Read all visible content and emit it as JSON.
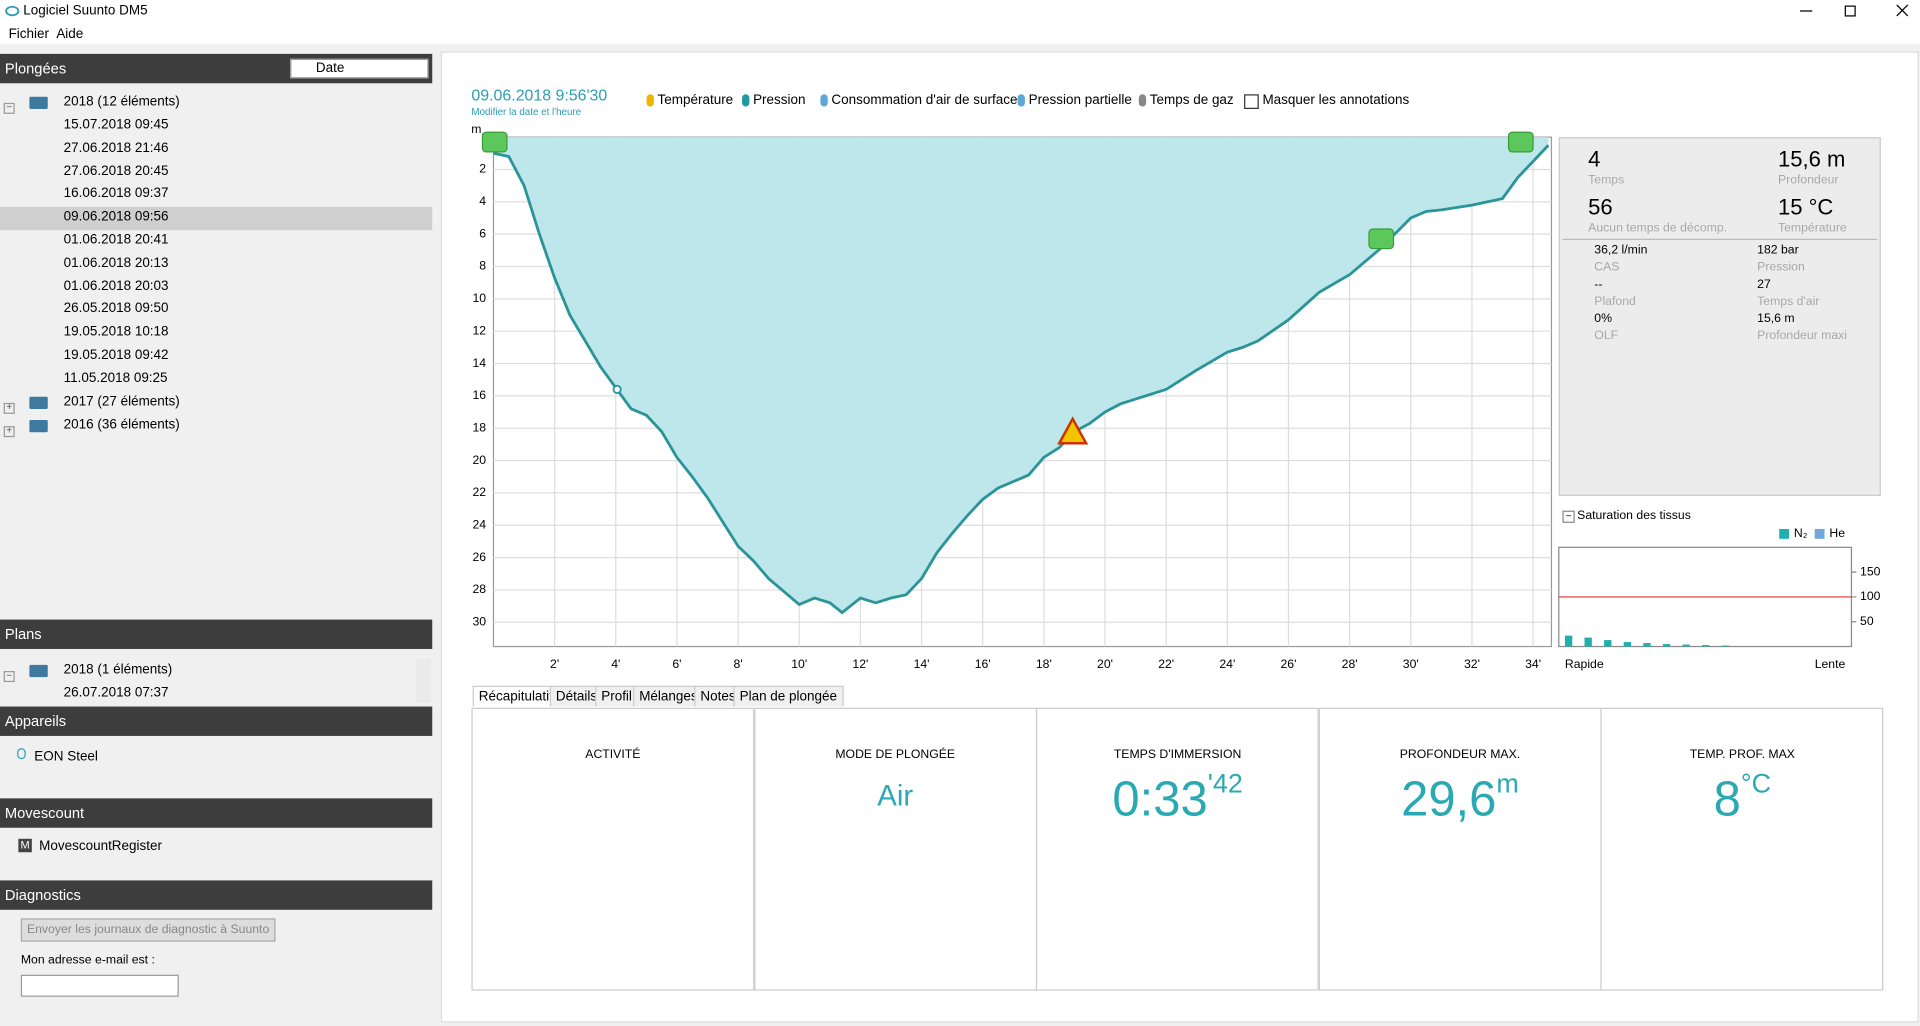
{
  "window": {
    "title": "Logiciel Suunto DM5"
  },
  "menu": [
    "Fichier",
    "Aide"
  ],
  "sidebar": {
    "dives": {
      "title": "Plongées",
      "sort": "Date",
      "groups": [
        {
          "label": "2018 (12 éléments)",
          "items": [
            "15.07.2018 09:45",
            "27.06.2018 21:46",
            "27.06.2018 20:45",
            "16.06.2018 09:37",
            "09.06.2018 09:56",
            "01.06.2018 20:41",
            "01.06.2018 20:13",
            "01.06.2018 20:03",
            "26.05.2018 09:50",
            "19.05.2018 10:18",
            "19.05.2018 09:42",
            "11.05.2018 09:25"
          ]
        },
        {
          "label": "2017 (27 éléments)"
        },
        {
          "label": "2016 (36 éléments)"
        }
      ]
    },
    "plans": {
      "title": "Plans",
      "group": "2018 (1 éléments)",
      "items": [
        "26.07.2018 07:37"
      ]
    },
    "devices": {
      "title": "Appareils",
      "items": [
        "EON Steel"
      ]
    },
    "movescount": {
      "title": "Movescount",
      "items": [
        "MovescountRegister"
      ]
    },
    "diagnostics": {
      "title": "Diagnostics",
      "button": "Envoyer les journaux de diagnostic à Suunto",
      "email_label": "Mon adresse e-mail est :"
    }
  },
  "dive": {
    "datetime": "09.06.2018 9:56'30",
    "edit_link": "Modifier la date et l'heure",
    "toggles": [
      "Température",
      "Pression",
      "Consommation d'air de surface",
      "Pression partielle",
      "Temps de gaz"
    ],
    "hide_annotations": "Masquer les annotations"
  },
  "profile": {
    "y_unit": "m",
    "xlim": [
      0,
      34.6
    ],
    "ylim": [
      0,
      31.5
    ],
    "xticks": [
      {
        "value": 2,
        "label": "2'"
      },
      {
        "value": 4,
        "label": "4'"
      },
      {
        "value": 6,
        "label": "6'"
      },
      {
        "value": 8,
        "label": "8'"
      },
      {
        "value": 10,
        "label": "10'"
      },
      {
        "value": 12,
        "label": "12'"
      },
      {
        "value": 14,
        "label": "14'"
      },
      {
        "value": 16,
        "label": "16'"
      },
      {
        "value": 18,
        "label": "18'"
      },
      {
        "value": 20,
        "label": "20'"
      },
      {
        "value": 22,
        "label": "22'"
      },
      {
        "value": 24,
        "label": "24'"
      },
      {
        "value": 26,
        "label": "26'"
      },
      {
        "value": 28,
        "label": "28'"
      },
      {
        "value": 30,
        "label": "30'"
      },
      {
        "value": 32,
        "label": "32'"
      },
      {
        "value": 34,
        "label": "34'"
      }
    ],
    "yticks": [
      2,
      4,
      6,
      8,
      10,
      12,
      14,
      16,
      18,
      20,
      22,
      24,
      26,
      28,
      30
    ],
    "x": [
      0,
      0.5,
      1,
      1.5,
      2,
      2.5,
      3,
      3.5,
      4,
      4.5,
      5,
      5.5,
      6,
      6.5,
      7,
      7.5,
      8,
      8.5,
      9,
      9.5,
      10,
      10.5,
      11,
      11.4,
      12,
      12.5,
      13,
      13.5,
      14,
      14.5,
      15,
      15.5,
      16,
      16.5,
      17,
      17.5,
      18,
      18.5,
      19,
      19.5,
      20,
      20.5,
      21,
      22,
      23,
      24,
      24.5,
      25,
      26,
      27,
      28,
      29,
      30,
      30.5,
      31,
      32,
      33,
      33.5,
      34,
      34.5
    ],
    "values": [
      1,
      1.2,
      3,
      6,
      8.7,
      11,
      12.6,
      14.2,
      15.5,
      16.8,
      17.2,
      18.2,
      19.8,
      21,
      22.3,
      23.8,
      25.3,
      26.2,
      27.3,
      28.1,
      28.9,
      28.5,
      28.8,
      29.4,
      28.5,
      28.8,
      28.5,
      28.3,
      27.3,
      25.7,
      24.5,
      23.4,
      22.4,
      21.7,
      21.3,
      20.9,
      19.8,
      19.2,
      18.2,
      17.7,
      17,
      16.5,
      16.2,
      15.6,
      14.4,
      13.3,
      13,
      12.6,
      11.3,
      9.6,
      8.5,
      6.9,
      5,
      4.6,
      4.5,
      4.2,
      3.8,
      2.5,
      1.5,
      0.5
    ]
  },
  "stats": {
    "main": [
      {
        "value": "4",
        "label": "Temps"
      },
      {
        "value": "15,6 m",
        "label": "Profondeur"
      },
      {
        "value": "56",
        "label": "Aucun temps de décomp."
      },
      {
        "value": "15 °C",
        "label": "Température"
      }
    ],
    "details": [
      {
        "value": "36,2 l/min",
        "label": "CAS"
      },
      {
        "value": "182 bar",
        "label": "Pression"
      },
      {
        "value": "--",
        "label": "Plafond"
      },
      {
        "value": "27",
        "label": "Temps d'air"
      },
      {
        "value": "0%",
        "label": "OLF"
      },
      {
        "value": "15,6 m",
        "label": "Profondeur maxi"
      }
    ]
  },
  "saturation": {
    "title": "Saturation des tissus",
    "legend": [
      {
        "name": "N₂",
        "color": "#1fb0ae"
      },
      {
        "name": "He",
        "color": "#6fa8dc"
      }
    ],
    "ylim": [
      0,
      200
    ],
    "yticks": [
      50,
      100,
      150
    ],
    "limit": 100,
    "values": [
      22,
      18,
      13,
      9,
      7,
      5,
      4,
      3,
      2
    ],
    "x_labels": [
      "Rapide",
      "Lente"
    ]
  },
  "tabs": [
    "Récapitulatif",
    "Détails",
    "Profil",
    "Mélanges",
    "Notes",
    "Plan de plongée"
  ],
  "summary": [
    {
      "label": "ACTIVITÉ"
    },
    {
      "label": "MODE DE PLONGÉE",
      "value": "Air"
    },
    {
      "label": "TEMPS D'IMMERSION",
      "value": "0:33",
      "sup": "'42"
    },
    {
      "label": "PROFONDEUR MAX.",
      "value": "29,6",
      "sup": "m"
    },
    {
      "label": "TEMP. PROF. MAX",
      "value": "8",
      "sup": "°C"
    }
  ]
}
